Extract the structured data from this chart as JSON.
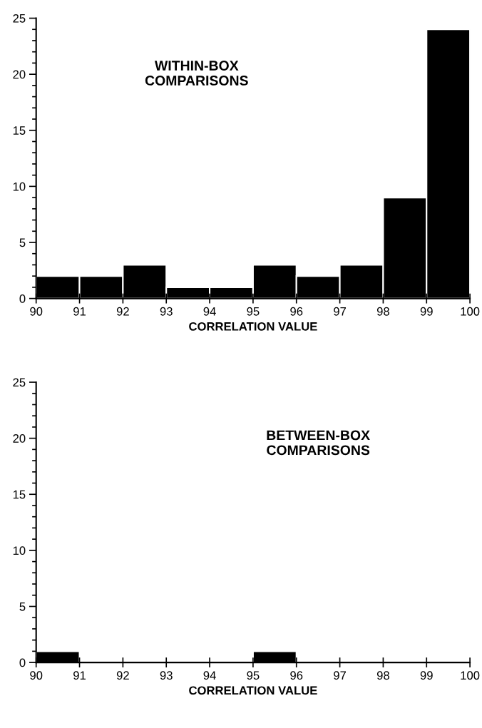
{
  "chart_data": [
    {
      "type": "histogram",
      "xlabel": "CORRELATION VALUE",
      "annotations": [
        "WITHIN-BOX\nCOMPARISONS"
      ],
      "bins": [
        90,
        91,
        92,
        93,
        94,
        95,
        96,
        97,
        98,
        99,
        100
      ],
      "values": [
        2,
        2,
        3,
        1,
        1,
        3,
        2,
        3,
        9,
        24
      ],
      "color": "#000000",
      "xlim": [
        90,
        100
      ],
      "xticks": [
        90,
        91,
        92,
        93,
        94,
        95,
        96,
        97,
        98,
        99,
        100
      ],
      "ylim": [
        0,
        25
      ],
      "yticks": [
        0,
        5,
        10,
        15,
        20,
        25
      ],
      "grid": false
    },
    {
      "type": "histogram",
      "xlabel": "CORRELATION VALUE",
      "annotations": [
        "BETWEEN-BOX\nCOMPARISONS"
      ],
      "bins": [
        90,
        91,
        92,
        93,
        94,
        95,
        96,
        97,
        98,
        99,
        100
      ],
      "values": [
        1,
        0,
        0,
        0,
        0,
        1,
        0,
        0,
        0,
        0
      ],
      "color": "#000000",
      "xlim": [
        90,
        100
      ],
      "xticks": [
        90,
        91,
        92,
        93,
        94,
        95,
        96,
        97,
        98,
        99,
        100
      ],
      "ylim": [
        0,
        25
      ],
      "yticks": [
        0,
        5,
        10,
        15,
        20,
        25
      ],
      "grid": false
    }
  ]
}
